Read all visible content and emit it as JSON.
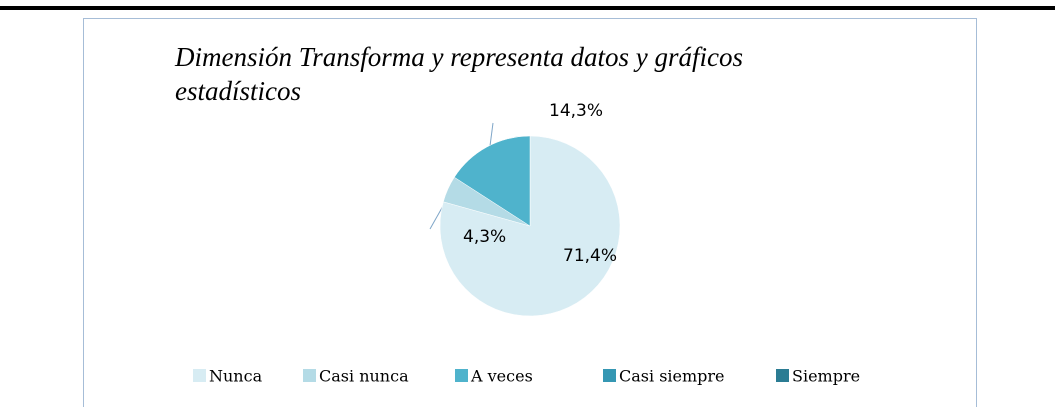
{
  "chart_data": {
    "type": "pie",
    "title": "Dimensión Transforma y representa datos y gráficos estadísticos",
    "categories": [
      "Nunca",
      "Casi nunca",
      "A veces",
      "Casi siempre",
      "Siempre"
    ],
    "values": [
      71.4,
      4.3,
      14.3,
      0,
      0
    ],
    "value_labels": [
      "71,4%",
      "4,3%",
      "14,3%",
      null,
      null
    ],
    "colors": [
      "#d7ecf3",
      "#b4dbe6",
      "#4fb3cc",
      "#3597b3",
      "#2b7c93"
    ],
    "legend": "bottom"
  }
}
